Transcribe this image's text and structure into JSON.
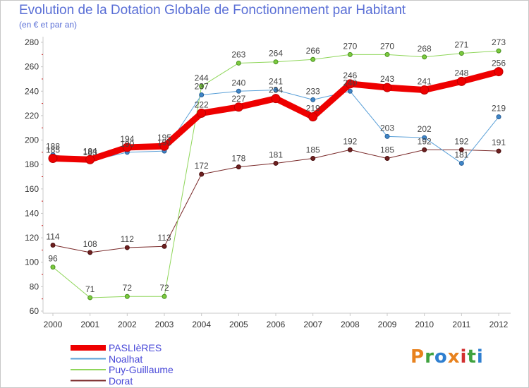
{
  "header": {
    "title": "Evolution de la Dotation Globale de Fonctionnement par Habitant",
    "subtitle": "(en € et par an)"
  },
  "brand": {
    "text": "Proxiti",
    "colors": [
      "#e8821e",
      "#3fa23f",
      "#2f7fd0",
      "#e8821e",
      "#d23030",
      "#3fa23f",
      "#2f7fd0"
    ]
  },
  "chart_data": {
    "type": "line",
    "categories": [
      "2000",
      "2001",
      "2002",
      "2003",
      "2004",
      "2005",
      "2006",
      "2007",
      "2008",
      "2009",
      "2010",
      "2011",
      "2012"
    ],
    "ylim": [
      60,
      280
    ],
    "yticks": [
      60,
      80,
      100,
      120,
      140,
      160,
      180,
      200,
      220,
      240,
      260,
      280
    ],
    "grid": false,
    "legend": "bottom-left",
    "series": [
      {
        "name": "PASLIèRES",
        "color": "#ee0000",
        "values": [
          185,
          184,
          194,
          195,
          222,
          227,
          234,
          219,
          246,
          243,
          241,
          248,
          256
        ]
      },
      {
        "name": "Noalhat",
        "color": "#5aa0d8",
        "values": [
          188,
          183,
          190,
          191,
          237,
          240,
          241,
          233,
          240,
          203,
          202,
          181,
          219
        ]
      },
      {
        "name": "Puy-Guillaume",
        "color": "#8fd65a",
        "values": [
          96,
          71,
          72,
          72,
          244,
          263,
          264,
          266,
          270,
          270,
          268,
          271,
          273
        ]
      },
      {
        "name": "Dorat",
        "color": "#7a2a2a",
        "values": [
          114,
          108,
          112,
          113,
          172,
          178,
          181,
          185,
          192,
          185,
          192,
          192,
          191
        ]
      }
    ]
  }
}
